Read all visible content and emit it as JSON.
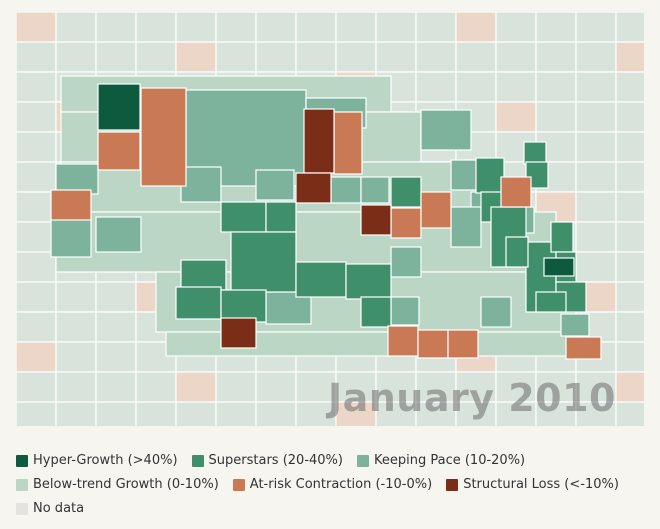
{
  "map": {
    "title": "January 2010",
    "base_fill": "#c9ddd0"
  },
  "legend": [
    {
      "key": "hyper",
      "label": "Hyper-Growth (>40%)",
      "color": "#0d5a3e"
    },
    {
      "key": "super",
      "label": "Superstars (20-40%)",
      "color": "#3e8f6a"
    },
    {
      "key": "keeping",
      "label": "Keeping Pace (10-20%)",
      "color": "#7db39d"
    },
    {
      "key": "below",
      "label": "Below-trend Growth (0-10%)",
      "color": "#bcd6c6"
    },
    {
      "key": "atrisk",
      "label": "At-risk Contraction (-10-0%)",
      "color": "#c97a55"
    },
    {
      "key": "structural",
      "label": "Structural Loss (<-10%)",
      "color": "#7b2e17"
    },
    {
      "key": "nodata",
      "label": "No data",
      "color": "#e3e3e0"
    }
  ],
  "faded": {
    "below": "#d8e3db",
    "atrisk": "#ecd6c8"
  }
}
